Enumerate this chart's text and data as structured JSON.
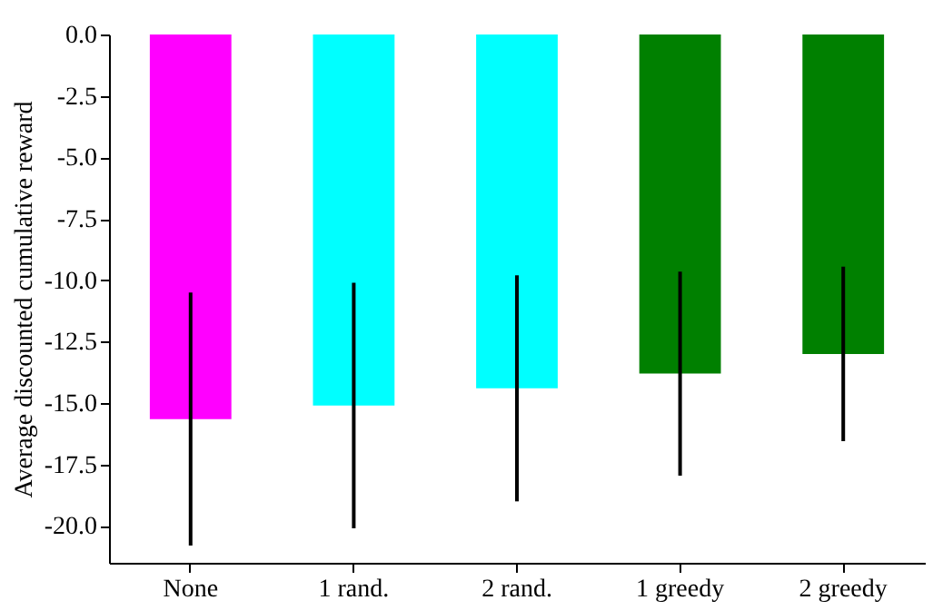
{
  "chart_data": {
    "type": "bar",
    "ylabel": "Average discounted cumulative reward",
    "categories": [
      "None",
      "1 rand.",
      "2 rand.",
      "1 greedy",
      "2 greedy"
    ],
    "values": [
      -15.65,
      -15.1,
      -14.4,
      -13.8,
      -13.0
    ],
    "colors": [
      "#ff00ff",
      "#00ffff",
      "#00ffff",
      "#008000",
      "#008000"
    ],
    "errors": [
      5.15,
      5.0,
      4.6,
      4.15,
      3.55
    ],
    "ylim": [
      -21.5,
      0.0
    ],
    "yticks": [
      {
        "value": 0,
        "label": "0.0"
      },
      {
        "value": -2.5,
        "label": "-2.5"
      },
      {
        "value": -5,
        "label": "-5.0"
      },
      {
        "value": -7.5,
        "label": "-7.5"
      },
      {
        "value": -10,
        "label": "-10.0"
      },
      {
        "value": -12.5,
        "label": "-12.5"
      },
      {
        "value": -15,
        "label": "-15.0"
      },
      {
        "value": -17.5,
        "label": "-17.5"
      },
      {
        "value": -20,
        "label": "-20.0"
      }
    ],
    "grid": false
  }
}
